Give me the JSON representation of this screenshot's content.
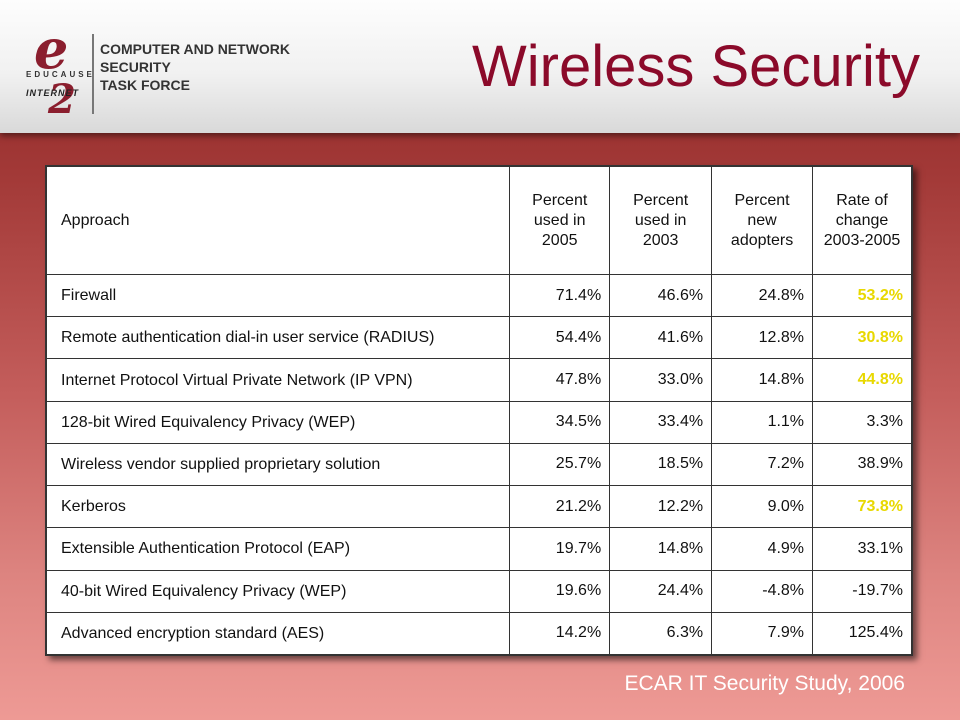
{
  "header": {
    "title": "Wireless Security",
    "logo": {
      "e_mark": "e",
      "educause": "EDUCAUSE",
      "internet": "INTERNET",
      "two_mark": "2",
      "line1": "COMPUTER AND NETWORK",
      "line2": "SECURITY",
      "line3": "TASK FORCE"
    }
  },
  "table": {
    "headers": [
      "Approach",
      "Percent used in 2005",
      "Percent used in 2003",
      "Percent new adopters",
      "Rate of change 2003-2005"
    ],
    "rows": [
      {
        "approach": "Firewall",
        "p2005": "71.4%",
        "p2003": "46.6%",
        "new": "24.8%",
        "rate": "53.2%"
      },
      {
        "approach": "Remote authentication dial-in user service (RADIUS)",
        "p2005": "54.4%",
        "p2003": "41.6%",
        "new": "12.8%",
        "rate": "30.8%"
      },
      {
        "approach": "Internet Protocol Virtual Private Network (IP VPN)",
        "p2005": "47.8%",
        "p2003": "33.0%",
        "new": "14.8%",
        "rate": "44.8%"
      },
      {
        "approach": "128-bit Wired Equivalency Privacy (WEP)",
        "p2005": "34.5%",
        "p2003": "33.4%",
        "new": "1.1%",
        "rate": "3.3%"
      },
      {
        "approach": "Wireless vendor supplied proprietary solution",
        "p2005": "25.7%",
        "p2003": "18.5%",
        "new": "7.2%",
        "rate": "38.9%"
      },
      {
        "approach": "Kerberos",
        "p2005": "21.2%",
        "p2003": "12.2%",
        "new": "9.0%",
        "rate": "73.8%"
      },
      {
        "approach": "Extensible Authentication Protocol (EAP)",
        "p2005": "19.7%",
        "p2003": "14.8%",
        "new": "4.9%",
        "rate": "33.1%"
      },
      {
        "approach": "40-bit Wired Equivalency Privacy (WEP)",
        "p2005": "19.6%",
        "p2003": "24.4%",
        "new": "-4.8%",
        "rate": "-19.7%"
      },
      {
        "approach": "Advanced encryption standard (AES)",
        "p2005": "14.2%",
        "p2003": "6.3%",
        "new": "7.9%",
        "rate": "125.4%"
      }
    ],
    "highlight_color": "#e8d800"
  },
  "footer": {
    "source": "ECAR IT Security Study, 2006"
  }
}
